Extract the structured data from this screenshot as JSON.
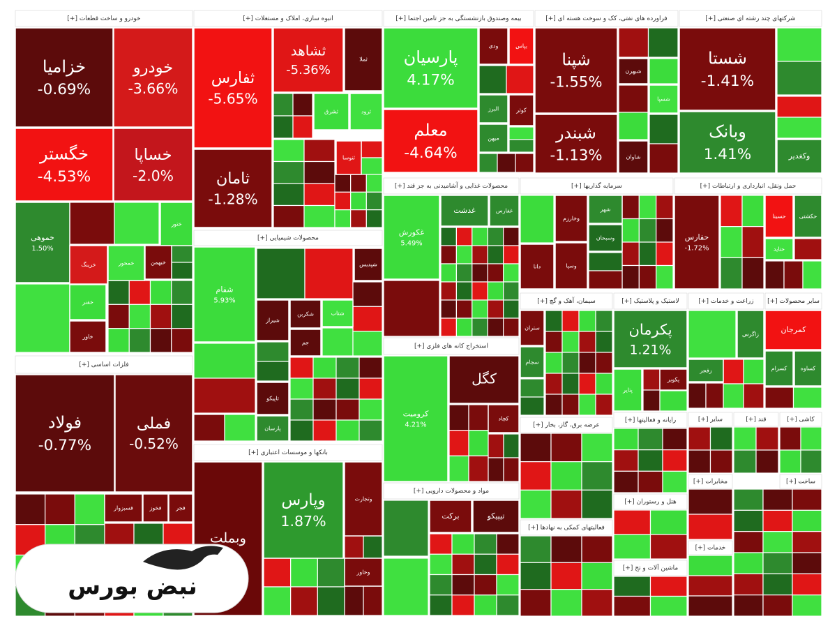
{
  "sectors": [
    {
      "title": "خودرو و ساخت قطعات [+]",
      "tiles": [
        {
          "label": "خزامیا",
          "change": "-0.69%"
        },
        {
          "label": "خودرو",
          "change": "-3.66%"
        },
        {
          "label": "خگستر",
          "change": "-4.53%"
        },
        {
          "label": "خساپا",
          "change": "-2.0%"
        },
        {
          "label": "خموهی",
          "change": "1.50%"
        },
        {
          "label": "ختور"
        },
        {
          "label": "خرینگ"
        },
        {
          "label": "خمحور"
        },
        {
          "label": "خبهمن"
        },
        {
          "label": "خفنر"
        },
        {
          "label": "خاور"
        }
      ]
    },
    {
      "title": "فلزات اساسی [+]",
      "tiles": [
        {
          "label": "فولاد",
          "change": "-0.77%"
        },
        {
          "label": "فملی",
          "change": "-0.52%"
        },
        {
          "label": "فسبزوار"
        },
        {
          "label": "فخوز"
        },
        {
          "label": "فجر"
        }
      ]
    },
    {
      "title": "انبوه سازی، املاک و مستغلات [+]",
      "tiles": [
        {
          "label": "ثفارس",
          "change": "-5.65%"
        },
        {
          "label": "ثامان",
          "change": "-1.28%"
        },
        {
          "label": "ثشاهد",
          "change": "-5.36%"
        },
        {
          "label": "ثملا"
        },
        {
          "label": "ثشرق"
        },
        {
          "label": "ثرود"
        },
        {
          "label": "ثنوسا"
        }
      ]
    },
    {
      "title": "محصولات شیمیایی [+]",
      "tiles": [
        {
          "label": "شفام",
          "change": "5.93%"
        },
        {
          "label": "شیراز"
        },
        {
          "label": "شکربن"
        },
        {
          "label": "شتاب"
        },
        {
          "label": "شپدیس"
        },
        {
          "label": "جم"
        },
        {
          "label": "تاپیکو"
        },
        {
          "label": "پارسان"
        }
      ]
    },
    {
      "title": "بانکها و موسسات اعتباری [+]",
      "tiles": [
        {
          "label": "وبملت"
        },
        {
          "label": "وپارس",
          "change": "1.87%"
        },
        {
          "label": "وتجارت"
        },
        {
          "label": "وخاور"
        }
      ]
    },
    {
      "title": "بیمه وصندوق بازنشستگی به جز تامین اجتما [+]",
      "tiles": [
        {
          "label": "پارسیان",
          "change": "4.17%"
        },
        {
          "label": "معلم",
          "change": "-4.64%"
        },
        {
          "label": "ودی"
        },
        {
          "label": "بپاس"
        },
        {
          "label": "البرز"
        },
        {
          "label": "کوثر"
        },
        {
          "label": "میهن"
        }
      ]
    },
    {
      "title": "فراورده های نفتی، کک و سوخت هسته ای [+]",
      "tiles": [
        {
          "label": "شپنا",
          "change": "-1.55%"
        },
        {
          "label": "شبندر",
          "change": "-1.13%"
        },
        {
          "label": "شبهرن"
        },
        {
          "label": "شسپا"
        },
        {
          "label": "شاوان"
        }
      ]
    },
    {
      "title": "شرکتهای چند رشته ای صنعتی [+]",
      "tiles": [
        {
          "label": "شستا",
          "change": "-1.41%"
        },
        {
          "label": "وبانک",
          "change": "1.41%"
        },
        {
          "label": "وکغدیر"
        }
      ]
    },
    {
      "title": "محصولات غذایی و آشامیدنی به جز قند [+]",
      "tiles": [
        {
          "label": "غکورش",
          "change": "5.49%"
        },
        {
          "label": "غدشت"
        },
        {
          "label": "غفارس"
        }
      ]
    },
    {
      "title": "استخراج کانه های فلزی [+]",
      "tiles": [
        {
          "label": "کرومیت",
          "change": "4.21%"
        },
        {
          "label": "کگل"
        },
        {
          "label": "کچاد"
        }
      ]
    },
    {
      "title": "مواد و محصولات دارویی [+]",
      "tiles": [
        {
          "label": "برکت"
        },
        {
          "label": "تیپیکو"
        }
      ]
    },
    {
      "title": "سرمایه گذاریها [+]",
      "tiles": [
        {
          "label": "وخارزم"
        },
        {
          "label": "شهر"
        },
        {
          "label": "وسبحان"
        },
        {
          "label": "وسپا"
        },
        {
          "label": "دانا"
        }
      ]
    },
    {
      "title": "حمل ونقل، انبارداری و ارتباطات [+]",
      "tiles": [
        {
          "label": "حفارس",
          "change": "-1.72%"
        },
        {
          "label": "حسینا"
        },
        {
          "label": "حکشتی"
        },
        {
          "label": "حتاید"
        }
      ]
    },
    {
      "title": "سیمان، آهک و گچ [+]",
      "tiles": [
        {
          "label": "ستران"
        },
        {
          "label": "سجام"
        }
      ]
    },
    {
      "title": "لاستیک و پلاستیک [+]",
      "tiles": [
        {
          "label": "پکرمان",
          "change": "1.21%"
        },
        {
          "label": "پتایر"
        },
        {
          "label": "پکویر"
        }
      ]
    },
    {
      "title": "زراعت و خدمات [+]",
      "tiles": [
        {
          "label": "زاگرس"
        },
        {
          "label": "زفجر"
        }
      ]
    },
    {
      "title": "سایر محصولات [+]",
      "tiles": [
        {
          "label": "کمرجان"
        },
        {
          "label": "کسرام"
        },
        {
          "label": "کساوه"
        }
      ]
    },
    {
      "title": "عرضه برق، گاز، بخار [+]",
      "tiles": []
    },
    {
      "title": "فعالیتهای کمکی به نهادها [+]",
      "tiles": []
    },
    {
      "title": "رایانه و فعالیتها [+]",
      "tiles": []
    },
    {
      "title": "هتل و رستوران [+]",
      "tiles": []
    },
    {
      "title": "ماشین آلات و تج [+]",
      "tiles": []
    },
    {
      "title": "سایر [+]",
      "tiles": []
    },
    {
      "title": "قند [+]",
      "tiles": []
    },
    {
      "title": "کاشی [+]",
      "tiles": []
    },
    {
      "title": "مخابرات [+]",
      "tiles": []
    },
    {
      "title": "ساخت [+]",
      "tiles": []
    },
    {
      "title": "خدمات [+]",
      "tiles": []
    }
  ],
  "logo": "نبض بورس"
}
